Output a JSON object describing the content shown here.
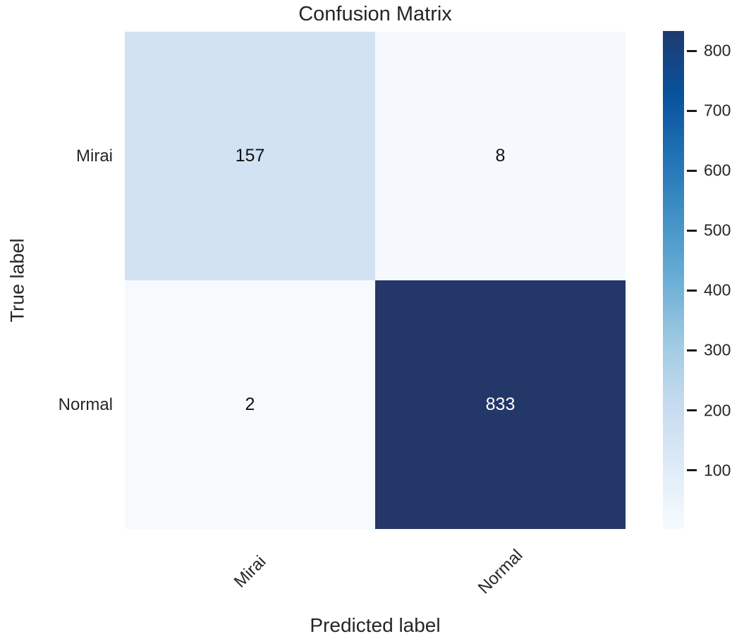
{
  "chart_data": {
    "type": "heatmap",
    "title": "Confusion Matrix",
    "xlabel": "Predicted label",
    "ylabel": "True label",
    "x_categories": [
      "Mirai",
      "Normal"
    ],
    "y_categories": [
      "Mirai",
      "Normal"
    ],
    "matrix": [
      [
        157,
        8
      ],
      [
        2,
        833
      ]
    ],
    "vmin": 2,
    "vmax": 833,
    "colormap": "Blues",
    "grid": false,
    "cell_colors": [
      [
        "#d2e2f2",
        "#f5f9fd"
      ],
      [
        "#f7fafd",
        "#233768"
      ]
    ],
    "cell_text_colors": [
      [
        "#111111",
        "#111111"
      ],
      [
        "#111111",
        "#ffffff"
      ]
    ],
    "colorbar": {
      "position": "right",
      "ticks": [
        100,
        200,
        300,
        400,
        500,
        600,
        700,
        800
      ],
      "gradient_stops": [
        "#f7fbff",
        "#deebf7",
        "#c6dbef",
        "#9ecae1",
        "#6baed6",
        "#4292c6",
        "#2171b5",
        "#08519c",
        "#1e3a70"
      ]
    }
  }
}
